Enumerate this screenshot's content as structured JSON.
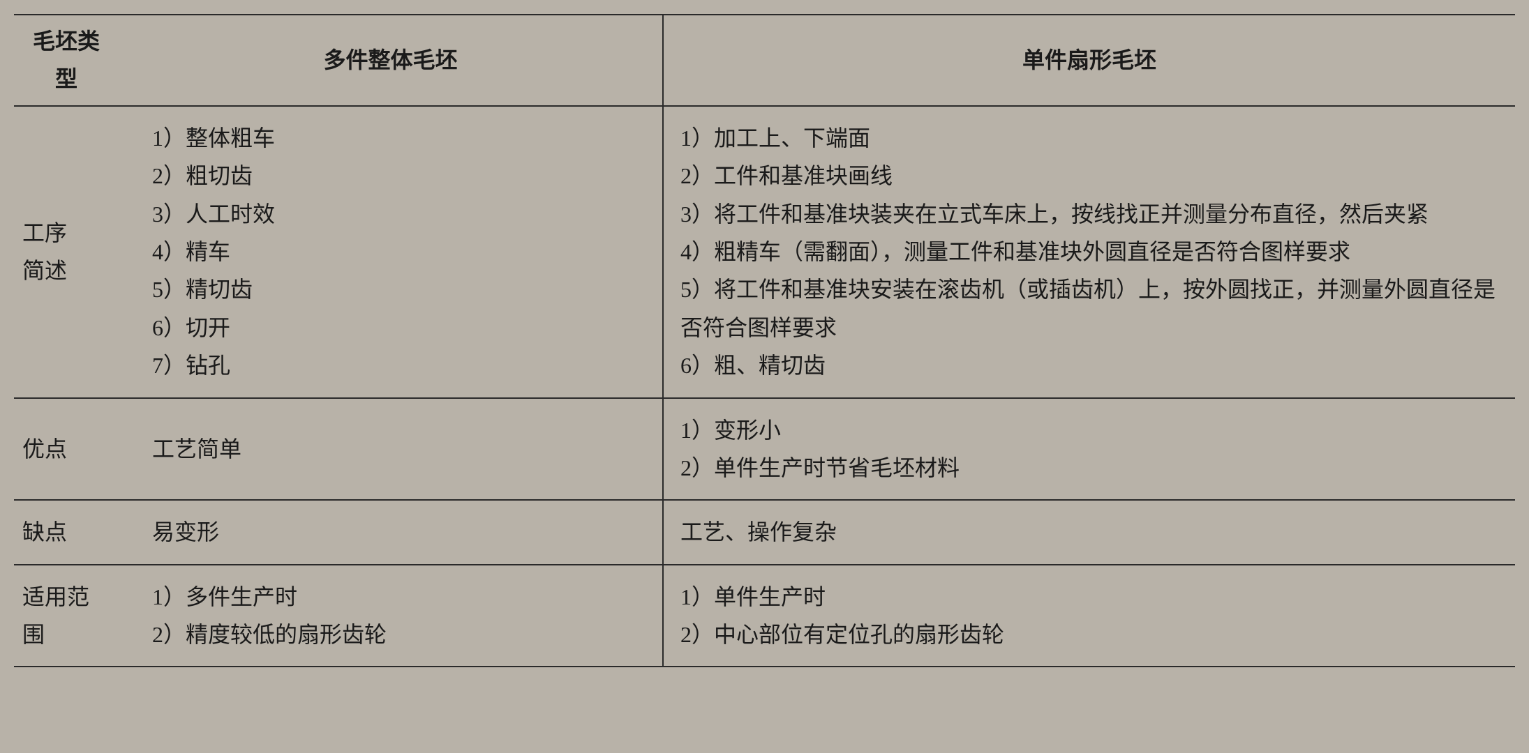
{
  "header": {
    "col0": "毛坯类型",
    "col1": "多件整体毛坯",
    "col2": "单件扇形毛坯"
  },
  "rows": {
    "process": {
      "label": "工序\n简述",
      "left": [
        "1）整体粗车",
        "2）粗切齿",
        "3）人工时效",
        "4）精车",
        "5）精切齿",
        "6）切开",
        "7）钻孔"
      ],
      "right": [
        "1）加工上、下端面",
        "2）工件和基准块画线",
        "3）将工件和基准块装夹在立式车床上，按线找正并测量分布直径，然后夹紧",
        "4）粗精车（需翻面），测量工件和基准块外圆直径是否符合图样要求",
        "5）将工件和基准块安装在滚齿机（或插齿机）上，按外圆找正，并测量外圆直径是否符合图样要求",
        "6）粗、精切齿"
      ]
    },
    "advantage": {
      "label": "优点",
      "left": "工艺简单",
      "right": [
        "1）变形小",
        "2）单件生产时节省毛坯材料"
      ]
    },
    "disadvantage": {
      "label": "缺点",
      "left": "易变形",
      "right": "工艺、操作复杂"
    },
    "scope": {
      "label": "适用范围",
      "left": [
        "1）多件生产时",
        "2）精度较低的扇形齿轮"
      ],
      "right": [
        "1）单件生产时",
        "2）中心部位有定位孔的扇形齿轮"
      ]
    }
  }
}
